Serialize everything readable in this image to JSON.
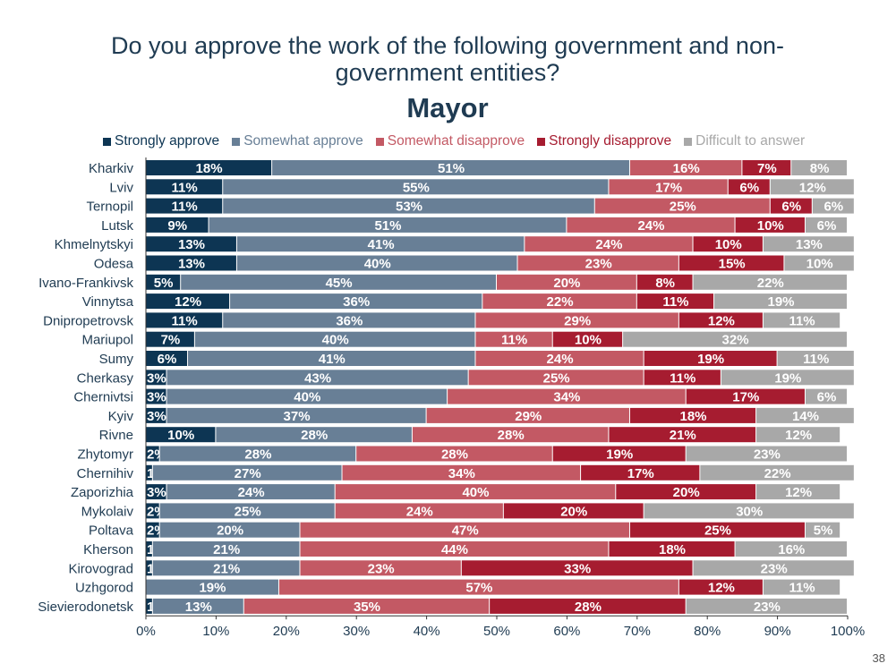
{
  "title": "Do you approve the work of the following government and non-government entities?",
  "subtitle": "Mayor",
  "page_number": "38",
  "colors": {
    "strongly_approve": "#0d3553",
    "somewhat_approve": "#687f96",
    "somewhat_disapprove": "#c35964",
    "strongly_disapprove": "#a61c30",
    "difficult": "#a8a8a8"
  },
  "chart_data": {
    "type": "bar",
    "orientation": "horizontal",
    "stacked": true,
    "title": "Mayor",
    "categories": [
      "Kharkiv",
      "Lviv",
      "Ternopil",
      "Lutsk",
      "Khmelnytskyi",
      "Odesa",
      "Ivano-Frankivsk",
      "Vinnytsa",
      "Dnipropetrovsk",
      "Mariupol",
      "Sumy",
      "Cherkasy",
      "Chernivtsi",
      "Kyiv",
      "Rivne",
      "Zhytomyr",
      "Chernihiv",
      "Zaporizhia",
      "Mykolaiv",
      "Poltava",
      "Kherson",
      "Kirovograd",
      "Uzhgorod",
      "Sievierodonetsk"
    ],
    "series": [
      {
        "name": "Strongly approve",
        "values": [
          18,
          11,
          11,
          9,
          13,
          13,
          5,
          12,
          11,
          7,
          6,
          3,
          3,
          3,
          10,
          2,
          1,
          3,
          2,
          2,
          1,
          1,
          0,
          1
        ]
      },
      {
        "name": "Somewhat approve",
        "values": [
          51,
          55,
          53,
          51,
          41,
          40,
          45,
          36,
          36,
          40,
          41,
          43,
          40,
          37,
          28,
          28,
          27,
          24,
          25,
          20,
          21,
          21,
          19,
          13
        ]
      },
      {
        "name": "Somewhat disapprove",
        "values": [
          16,
          17,
          25,
          24,
          24,
          23,
          20,
          22,
          29,
          11,
          24,
          25,
          34,
          29,
          28,
          28,
          34,
          40,
          24,
          47,
          44,
          23,
          57,
          35
        ]
      },
      {
        "name": "Strongly disapprove",
        "values": [
          7,
          6,
          6,
          10,
          10,
          15,
          8,
          11,
          12,
          10,
          19,
          11,
          17,
          18,
          21,
          19,
          17,
          20,
          20,
          25,
          18,
          33,
          12,
          28
        ]
      },
      {
        "name": "Difficult to answer",
        "values": [
          8,
          12,
          6,
          6,
          13,
          10,
          22,
          19,
          11,
          32,
          11,
          19,
          6,
          14,
          12,
          23,
          22,
          12,
          30,
          5,
          16,
          23,
          11,
          23
        ]
      }
    ],
    "xlim": [
      0,
      100
    ],
    "x_ticks": [
      "0%",
      "10%",
      "20%",
      "30%",
      "40%",
      "50%",
      "60%",
      "70%",
      "80%",
      "90%",
      "100%"
    ],
    "value_suffix": "%",
    "grid": false,
    "legend_position": "top"
  }
}
